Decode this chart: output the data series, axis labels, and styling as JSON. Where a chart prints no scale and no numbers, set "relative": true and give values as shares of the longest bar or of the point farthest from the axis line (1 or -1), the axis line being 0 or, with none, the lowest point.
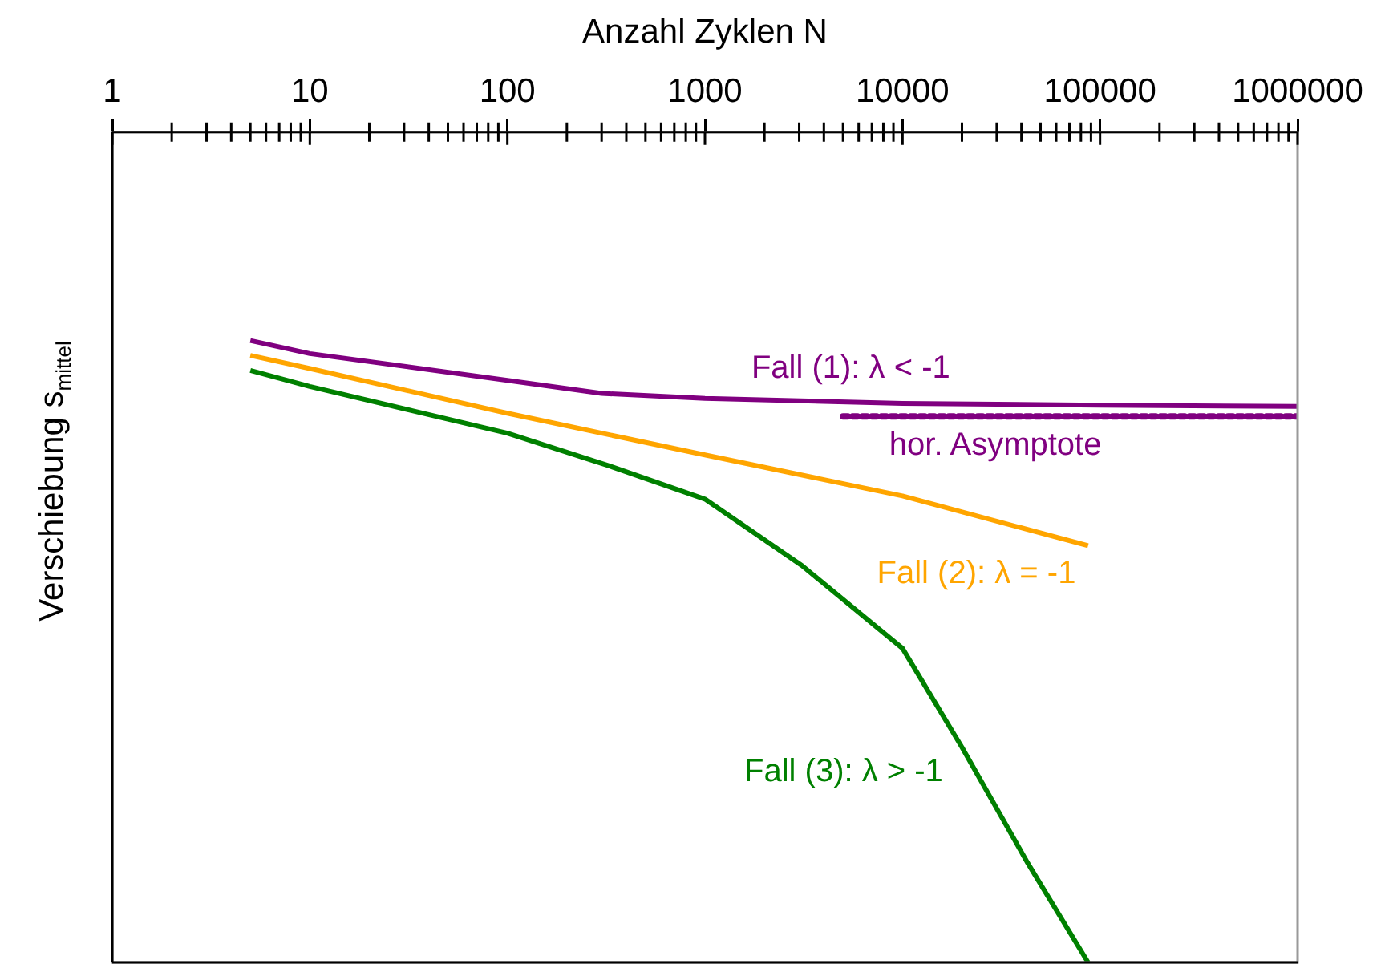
{
  "chart_data": {
    "type": "line",
    "relative": true,
    "xlabel": "Anzahl Zyklen N",
    "ylabel": "Verschiebung s$_{mittel}$",
    "log": "x",
    "xlim": [
      1,
      1000000
    ],
    "xticks": [
      1,
      10,
      100,
      1000,
      10000,
      100000,
      1000000
    ],
    "grid": false,
    "legend": false,
    "marker": "none",
    "series": [
      {
        "name": "Fall (1): λ < -1",
        "color": "#800080",
        "x": [
          5,
          10,
          100,
          300,
          1000,
          10000,
          100000,
          1000000
        ],
        "values": [
          1,
          0.979,
          0.936,
          0.915,
          0.907,
          0.899,
          0.896,
          0.894
        ]
      },
      {
        "name": "Fall (2): λ = -1",
        "color": "#ffa500",
        "x": [
          5,
          10,
          100,
          1000,
          10000,
          87000
        ],
        "values": [
          0.976,
          0.955,
          0.883,
          0.816,
          0.75,
          0.67
        ]
      },
      {
        "name": "Fall (3): λ > -1",
        "color": "#008000",
        "x": [
          5,
          10,
          100,
          330,
          1000,
          3100,
          10000,
          20000,
          43000,
          87000
        ],
        "values": [
          0.952,
          0.926,
          0.851,
          0.798,
          0.745,
          0.638,
          0.505,
          0.346,
          0.16,
          0
        ]
      },
      {
        "name": "hor. Asymptote",
        "color": "#800080",
        "line_style": "dotted",
        "x": [
          5000,
          1000000
        ],
        "values": [
          0.878,
          0.878
        ]
      }
    ]
  }
}
